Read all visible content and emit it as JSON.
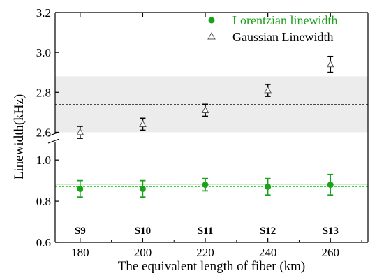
{
  "chart_data": {
    "type": "scatter",
    "xlabel": "The equivalent length of fiber (km)",
    "ylabel": "Linewidth(kHz)",
    "x": [
      180,
      200,
      220,
      240,
      260
    ],
    "xlim": [
      172,
      272
    ],
    "x_ticks": [
      "180",
      "200",
      "220",
      "240",
      "260"
    ],
    "sample_labels": [
      "S9",
      "S10",
      "S11",
      "S12",
      "S13"
    ],
    "y_axis_broken": true,
    "y_upper": {
      "ylim": [
        2.5,
        3.2
      ],
      "ticks": [
        "2.6",
        "2.8",
        "3.0",
        "3.2"
      ]
    },
    "y_lower": {
      "ylim": [
        0.6,
        1.15
      ],
      "ticks": [
        "0.6",
        "0.8",
        "1.0"
      ]
    },
    "series": [
      {
        "name": "Lorentzian linewidth",
        "marker": "filled-circle",
        "color": "#1aa31a",
        "values": [
          0.86,
          0.86,
          0.88,
          0.87,
          0.88
        ],
        "errors": [
          0.04,
          0.04,
          0.03,
          0.04,
          0.05
        ],
        "mean_line": 0.87
      },
      {
        "name": "Gaussian Linewidth",
        "marker": "open-triangle",
        "color": "#000000",
        "values": [
          2.6,
          2.64,
          2.71,
          2.81,
          2.94
        ],
        "errors": [
          0.03,
          0.03,
          0.03,
          0.03,
          0.04
        ],
        "mean_line": 2.74,
        "band": [
          2.6,
          2.88
        ]
      }
    ],
    "legend_position": "top-right",
    "grid": false
  }
}
